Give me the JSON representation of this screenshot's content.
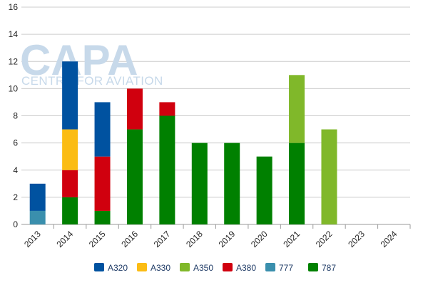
{
  "watermark": {
    "logo": "CAPA",
    "tagline": "CENTRE FOR AVIATION"
  },
  "chart_data": {
    "type": "bar",
    "stacked": true,
    "categories": [
      "2013",
      "2014",
      "2015",
      "2016",
      "2017",
      "2018",
      "2019",
      "2020",
      "2021",
      "2022",
      "2023",
      "2024"
    ],
    "ylim": [
      0,
      16
    ],
    "yticks": [
      0,
      2,
      4,
      6,
      8,
      10,
      12,
      14,
      16
    ],
    "grid": true,
    "legend_position": "bottom",
    "series": [
      {
        "name": "777",
        "color": "#3a8fad",
        "values": [
          1,
          0,
          0,
          0,
          0,
          0,
          0,
          0,
          0,
          0,
          0,
          0
        ]
      },
      {
        "name": "787",
        "color": "#008000",
        "values": [
          0,
          2,
          1,
          7,
          8,
          6,
          6,
          5,
          6,
          0,
          0,
          0
        ]
      },
      {
        "name": "A380",
        "color": "#d0000e",
        "values": [
          0,
          2,
          4,
          3,
          1,
          0,
          0,
          0,
          0,
          0,
          0,
          0
        ]
      },
      {
        "name": "A330",
        "color": "#fbbc14",
        "values": [
          0,
          3,
          0,
          0,
          0,
          0,
          0,
          0,
          0,
          0,
          0,
          0
        ]
      },
      {
        "name": "A350",
        "color": "#80b82a",
        "values": [
          0,
          0,
          0,
          0,
          0,
          0,
          0,
          0,
          5,
          7,
          0,
          0
        ]
      },
      {
        "name": "A320",
        "color": "#0052a0",
        "values": [
          2,
          5,
          4,
          0,
          0,
          0,
          0,
          0,
          0,
          0,
          0,
          0
        ]
      }
    ],
    "legend_order": [
      "A320",
      "A330",
      "A350",
      "A380",
      "777",
      "787"
    ]
  }
}
